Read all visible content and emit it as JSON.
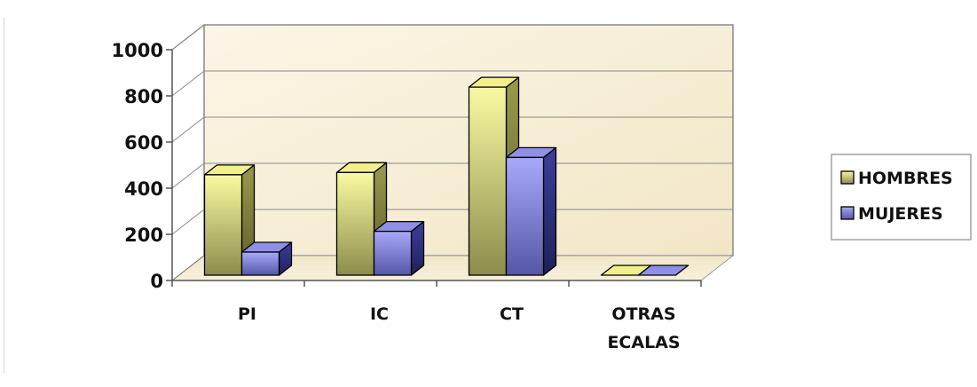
{
  "chart_data": {
    "type": "bar",
    "title": "",
    "xlabel": "",
    "ylabel": "",
    "categories": [
      [
        "PI"
      ],
      [
        "IC"
      ],
      [
        "CT"
      ],
      [
        "OTRAS",
        "ECALAS"
      ]
    ],
    "series": [
      {
        "name": "HOMBRES",
        "values": [
          435,
          445,
          815,
          0
        ],
        "color": "#f2f08a"
      },
      {
        "name": "MUJERES",
        "values": [
          100,
          190,
          510,
          0
        ],
        "color": "#8f8fe8"
      }
    ],
    "ylim": [
      0,
      1000
    ],
    "yticks": [
      0,
      200,
      400,
      600,
      800,
      1000
    ],
    "grid": true,
    "legend": "right",
    "style": "3d-clustered",
    "plot_background": "#f8f0d8"
  }
}
